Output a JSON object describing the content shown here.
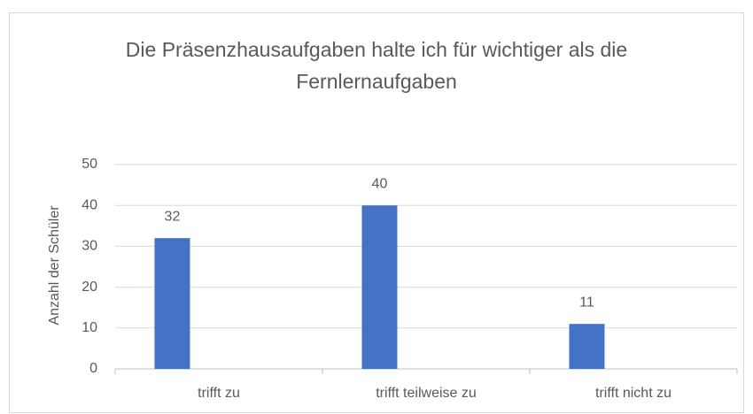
{
  "chart_data": {
    "type": "bar",
    "title": "Die Präsenzhausaufgaben halte ich für wichtiger als die Fernlernaufgaben",
    "ylabel": "Anzahl der Schüler",
    "categories": [
      "trifft zu",
      "trifft teilweise zu",
      "trifft nicht zu"
    ],
    "values": [
      32,
      40,
      11
    ],
    "color": "#4472c4",
    "ylim": [
      0,
      50
    ],
    "yticks": [
      0,
      10,
      20,
      30,
      40,
      50
    ],
    "grid": true
  }
}
